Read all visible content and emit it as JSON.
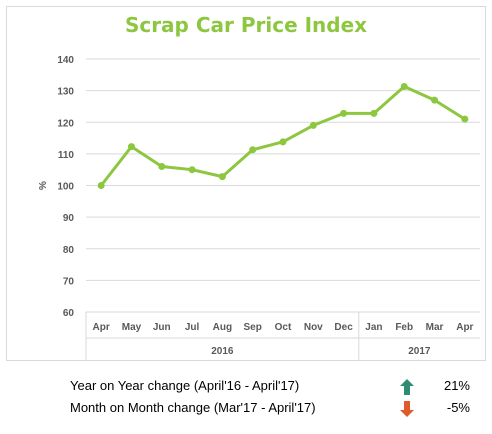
{
  "chart_data": {
    "type": "line",
    "title": "Scrap Car Price Index",
    "ylabel": "%",
    "xlabel": "",
    "ylim": [
      60,
      140
    ],
    "yticks": [
      60,
      70,
      80,
      90,
      100,
      110,
      120,
      130,
      140
    ],
    "grid": true,
    "legend": "none",
    "categories": [
      "Apr",
      "May",
      "Jun",
      "Jul",
      "Aug",
      "Sep",
      "Oct",
      "Nov",
      "Dec",
      "Jan",
      "Feb",
      "Mar",
      "Apr"
    ],
    "year_groups": [
      {
        "label": "2016",
        "count": 9
      },
      {
        "label": "2017",
        "count": 4
      }
    ],
    "series": [
      {
        "values": [
          100,
          112.3,
          106,
          105,
          102.8,
          111.3,
          113.8,
          119,
          122.8,
          122.8,
          131.3,
          127,
          121
        ],
        "color": "#8dc63f"
      }
    ]
  },
  "summary": {
    "yoy_label": "Year on Year change (April'16 - April'17)",
    "yoy_value": "21%",
    "yoy_direction": "up",
    "yoy_color": "#2e8b74",
    "mom_label": "Month on Month change (Mar'17 - April'17)",
    "mom_value": "-5%",
    "mom_direction": "down",
    "mom_color": "#e05a2b"
  }
}
